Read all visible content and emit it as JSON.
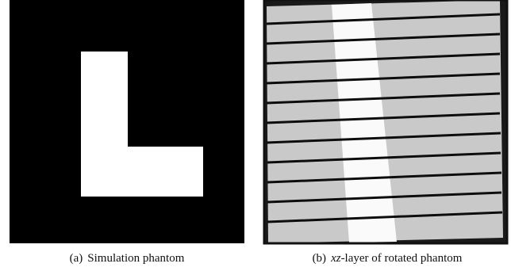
{
  "figures": [
    {
      "label": "(a)",
      "caption": "Simulation phantom"
    },
    {
      "label": "(b)",
      "caption_math": "xz",
      "caption": "-layer of rotated phantom"
    }
  ]
}
